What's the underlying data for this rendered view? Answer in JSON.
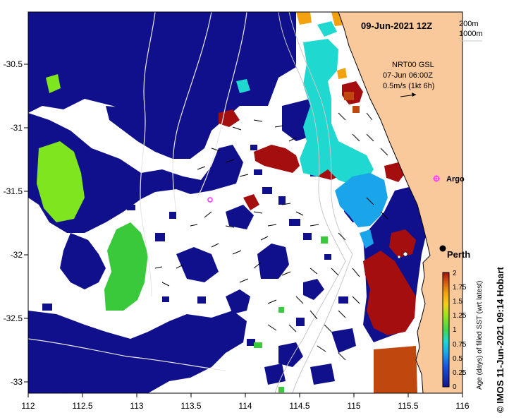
{
  "title": "09-Jun-2021 12Z",
  "depth_legend": [
    "200m",
    "1000m"
  ],
  "current_info": {
    "line1": "NRT00 GSL",
    "line2": "07-Jun 06:00Z",
    "line3": "0.5m/s (1kt 6h)"
  },
  "places": {
    "argo": "Argo",
    "perth": "Perth"
  },
  "x_ticks": [
    "112",
    "112.5",
    "113",
    "113.5",
    "114",
    "114.5",
    "115",
    "115.5",
    "116"
  ],
  "y_ticks": [
    "-30.5",
    "-31",
    "-31.5",
    "-32",
    "-32.5",
    "-33"
  ],
  "colorbar": {
    "label": "Age (days) of filled SST (wrt latest)",
    "ticks": [
      "0",
      "0.25",
      "0.5",
      "0.75",
      "1",
      "1.25",
      "1.5",
      "1.75",
      "2"
    ]
  },
  "credit": "© IMOS 11-Jun-2021 09:14 Hobart",
  "colors": {
    "land": "#f9c99c",
    "navy": "#10108c",
    "red": "#a40e0e",
    "cyan": "#1fd8cf",
    "blue": "#1aa4ea",
    "lime": "#7fe51f",
    "green": "#39c93a",
    "orange": "#f2a20f",
    "rust": "#c0480f",
    "argo": "#ff33ff"
  }
}
